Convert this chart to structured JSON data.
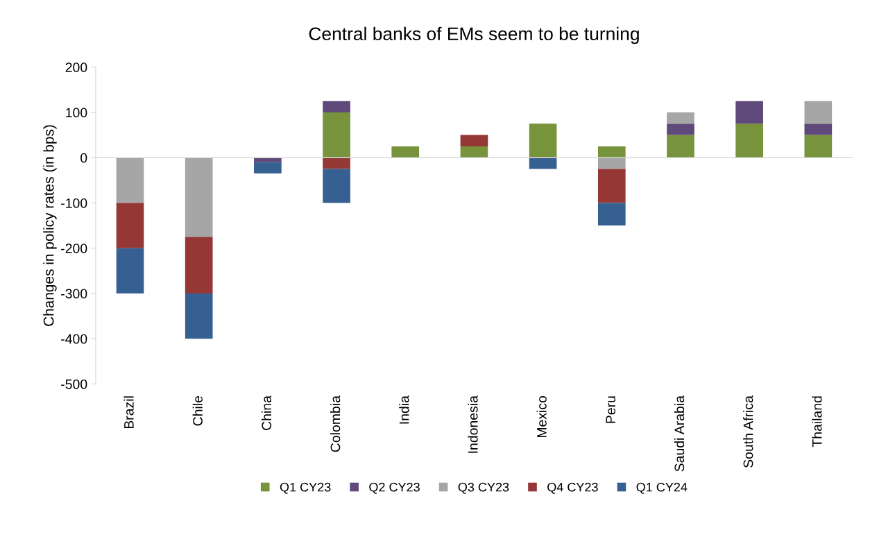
{
  "chart_data": {
    "type": "bar",
    "stacked": true,
    "title": "Central banks of EMs seem to be turning",
    "ylabel": "Changes in policy rates (in bps)",
    "categories": [
      "Brazil",
      "Chile",
      "China",
      "Colombia",
      "India",
      "Indonesia",
      "Mexico",
      "Peru",
      "Saudi Arabia",
      "South Africa",
      "Thailand"
    ],
    "series": [
      {
        "name": "Q1 CY23",
        "color": "#77933c",
        "values": [
          0,
          0,
          0,
          100,
          25,
          25,
          75,
          25,
          50,
          75,
          50
        ]
      },
      {
        "name": "Q2 CY23",
        "color": "#604a7b",
        "values": [
          0,
          0,
          -10,
          25,
          0,
          0,
          0,
          0,
          25,
          50,
          25
        ]
      },
      {
        "name": "Q3 CY23",
        "color": "#a6a6a6",
        "values": [
          -100,
          -175,
          0,
          0,
          0,
          0,
          0,
          -25,
          25,
          0,
          50
        ]
      },
      {
        "name": "Q4 CY23",
        "color": "#953735",
        "values": [
          -100,
          -125,
          0,
          -25,
          0,
          25,
          0,
          -75,
          0,
          0,
          0
        ]
      },
      {
        "name": "Q1 CY24",
        "color": "#376092",
        "values": [
          -100,
          -100,
          -25,
          -75,
          0,
          0,
          -25,
          -50,
          0,
          0,
          0
        ]
      }
    ],
    "ylim": [
      -500,
      200
    ],
    "yticks": [
      -500,
      -400,
      -300,
      -200,
      -100,
      0,
      100,
      200
    ],
    "legend": "bottom"
  }
}
